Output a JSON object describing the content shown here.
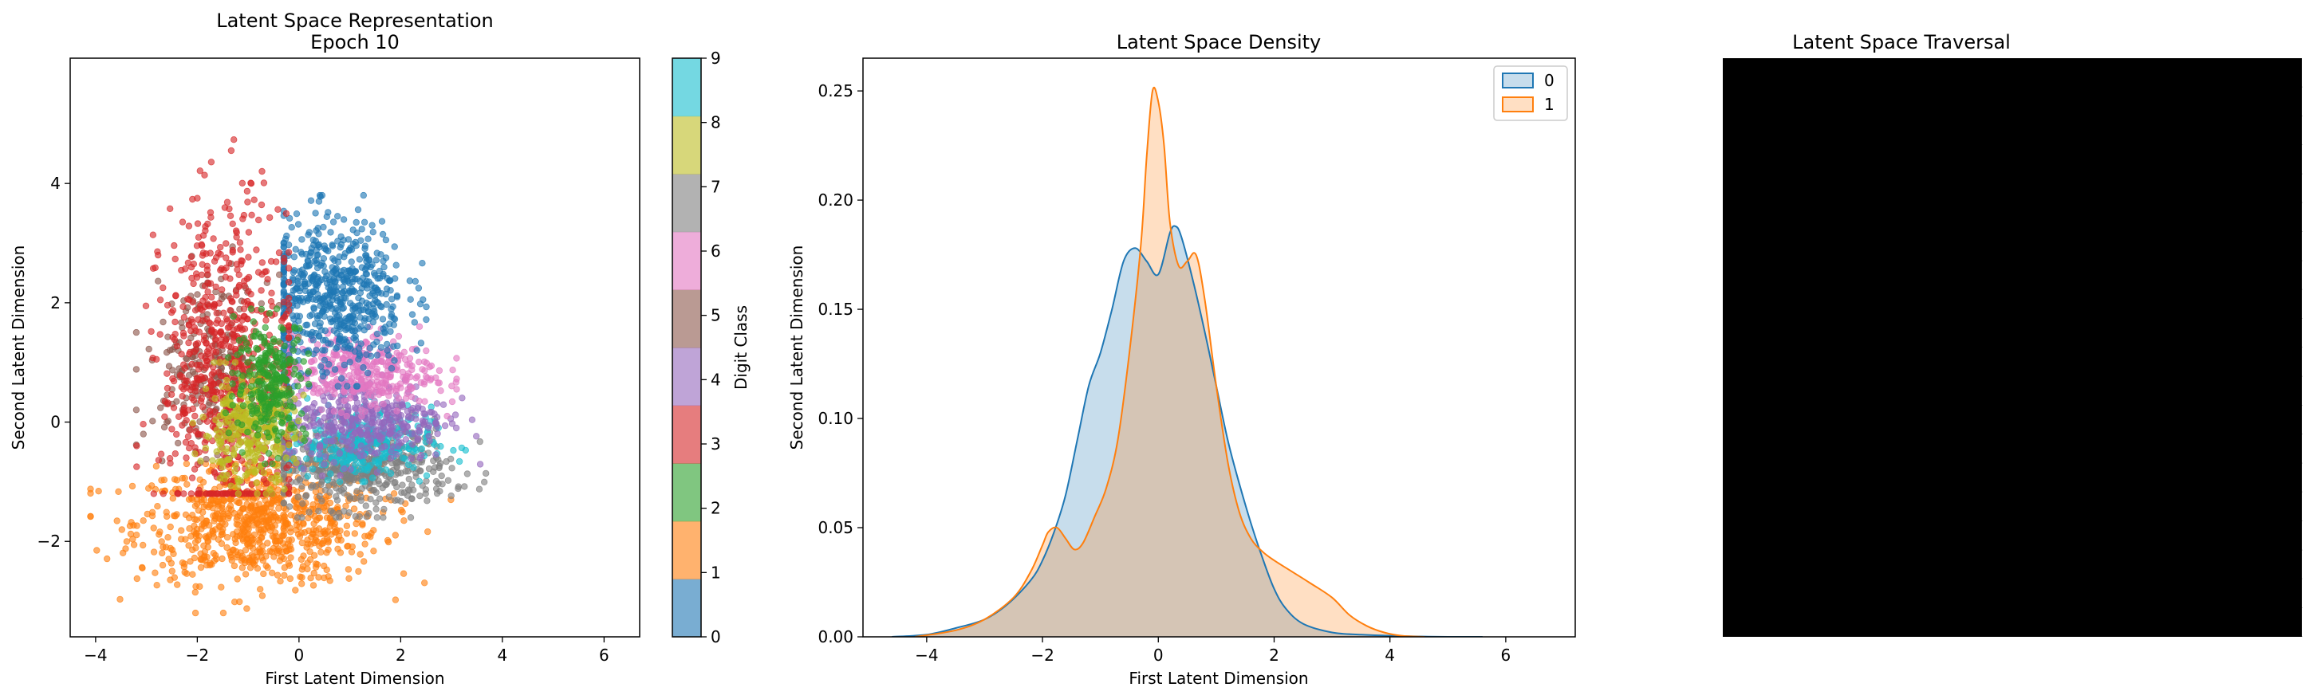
{
  "chart_data": [
    {
      "type": "scatter",
      "title": "Latent Space Representation\nEpoch 10",
      "title_lines": [
        "Latent Space Representation",
        "Epoch 10"
      ],
      "xlabel": "First Latent Dimension",
      "ylabel": "Second Latent Dimension",
      "xlim": [
        -4.5,
        6.7
      ],
      "ylim": [
        -3.6,
        6.1
      ],
      "xticks": [
        -4,
        -2,
        0,
        2,
        4,
        6
      ],
      "xtick_labels": [
        "−4",
        "−2",
        "0",
        "2",
        "4",
        "6"
      ],
      "yticks": [
        -2,
        0,
        2,
        4
      ],
      "ytick_labels": [
        "−2",
        "0",
        "2",
        "4"
      ],
      "grid": false,
      "colorbar": {
        "label": "Digit Class",
        "range": [
          0,
          9
        ],
        "ticks": [
          "0",
          "1",
          "2",
          "3",
          "4",
          "5",
          "6",
          "7",
          "8",
          "9"
        ],
        "colors": [
          "#1f77b4",
          "#ff7f0e",
          "#2ca02c",
          "#d62728",
          "#9467bd",
          "#8c564b",
          "#e377c2",
          "#7f7f7f",
          "#bcbd22",
          "#17becf"
        ]
      },
      "clusters": [
        {
          "class": 0,
          "color": "#1f77b4",
          "center": [
            0.7,
            2.1
          ],
          "spread": [
            0.7,
            0.65
          ],
          "n": 620,
          "range_x": [
            -0.3,
            3.3
          ],
          "range_y": [
            0.6,
            3.8
          ]
        },
        {
          "class": 1,
          "color": "#ff7f0e",
          "center": [
            -0.8,
            -1.7
          ],
          "spread": [
            1.2,
            0.5
          ],
          "n": 800,
          "range_x": [
            -4.1,
            3.3
          ],
          "range_y": [
            -3.2,
            -0.7
          ]
        },
        {
          "class": 2,
          "color": "#2ca02c",
          "center": [
            -0.55,
            0.7
          ],
          "spread": [
            0.35,
            0.5
          ],
          "n": 260,
          "range_x": [
            -1.8,
            0.4
          ],
          "range_y": [
            -0.7,
            1.9
          ]
        },
        {
          "class": 3,
          "color": "#d62728",
          "center": [
            -1.4,
            0.9
          ],
          "spread": [
            0.65,
            1.4
          ],
          "n": 700,
          "range_x": [
            -4.1,
            -0.2
          ],
          "range_y": [
            -1.2,
            5.6
          ]
        },
        {
          "class": 4,
          "color": "#9467bd",
          "center": [
            1.3,
            0.05
          ],
          "spread": [
            0.8,
            0.35
          ],
          "n": 360,
          "range_x": [
            -0.3,
            6.2
          ],
          "range_y": [
            -0.9,
            1.2
          ]
        },
        {
          "class": 5,
          "color": "#8c564b",
          "center": [
            -1.8,
            1.0
          ],
          "spread": [
            0.6,
            0.7
          ],
          "n": 220,
          "range_x": [
            -3.2,
            0.0
          ],
          "range_y": [
            -0.8,
            3.0
          ]
        },
        {
          "class": 6,
          "color": "#e377c2",
          "center": [
            1.1,
            0.85
          ],
          "spread": [
            0.8,
            0.3
          ],
          "n": 380,
          "range_x": [
            -0.2,
            3.1
          ],
          "range_y": [
            0.1,
            1.6
          ]
        },
        {
          "class": 7,
          "color": "#7f7f7f",
          "center": [
            1.2,
            -0.75
          ],
          "spread": [
            0.9,
            0.35
          ],
          "n": 520,
          "range_x": [
            -0.3,
            4.3
          ],
          "range_y": [
            -1.6,
            0.4
          ]
        },
        {
          "class": 8,
          "color": "#bcbd22",
          "center": [
            -1.0,
            -0.15
          ],
          "spread": [
            0.45,
            0.45
          ],
          "n": 320,
          "range_x": [
            -2.2,
            0.3
          ],
          "range_y": [
            -1.2,
            1.0
          ]
        },
        {
          "class": 9,
          "color": "#17becf",
          "center": [
            1.2,
            -0.35
          ],
          "spread": [
            0.7,
            0.3
          ],
          "n": 300,
          "range_x": [
            -0.2,
            4.5
          ],
          "range_y": [
            -1.0,
            0.8
          ]
        }
      ]
    },
    {
      "type": "area",
      "title": "Latent Space Density",
      "xlabel": "First Latent Dimension",
      "ylabel": "Second Latent Dimension",
      "xlim": [
        -5.1,
        7.2
      ],
      "ylim": [
        0,
        0.265
      ],
      "xticks": [
        -4,
        -2,
        0,
        2,
        4,
        6
      ],
      "xtick_labels": [
        "−4",
        "−2",
        "0",
        "2",
        "4",
        "6"
      ],
      "yticks": [
        0.0,
        0.05,
        0.1,
        0.15,
        0.2,
        0.25
      ],
      "ytick_labels": [
        "0.00",
        "0.05",
        "0.10",
        "0.15",
        "0.20",
        "0.25"
      ],
      "legend_placement": "top-right",
      "series": [
        {
          "name": "0",
          "color": "#1f77b4",
          "x": [
            -4.6,
            -4.0,
            -3.5,
            -3.0,
            -2.6,
            -2.2,
            -2.0,
            -1.8,
            -1.6,
            -1.4,
            -1.2,
            -1.0,
            -0.8,
            -0.6,
            -0.4,
            -0.2,
            0.0,
            0.2,
            0.3,
            0.4,
            0.6,
            0.8,
            1.0,
            1.2,
            1.4,
            1.6,
            1.8,
            2.0,
            2.2,
            2.5,
            3.0,
            3.5,
            4.0,
            4.5,
            5.0,
            5.6
          ],
          "y": [
            0.0,
            0.001,
            0.004,
            0.008,
            0.015,
            0.026,
            0.035,
            0.048,
            0.065,
            0.09,
            0.115,
            0.13,
            0.15,
            0.172,
            0.178,
            0.172,
            0.166,
            0.185,
            0.188,
            0.183,
            0.163,
            0.14,
            0.115,
            0.09,
            0.07,
            0.052,
            0.036,
            0.022,
            0.013,
            0.006,
            0.002,
            0.001,
            0.0005,
            0.0002,
            0.0,
            0.0
          ]
        },
        {
          "name": "1",
          "color": "#ff7f0e",
          "x": [
            -4.2,
            -3.5,
            -3.0,
            -2.5,
            -2.2,
            -2.0,
            -1.9,
            -1.75,
            -1.6,
            -1.45,
            -1.3,
            -1.1,
            -0.9,
            -0.7,
            -0.5,
            -0.3,
            -0.2,
            -0.1,
            0.0,
            0.1,
            0.2,
            0.35,
            0.5,
            0.65,
            0.8,
            1.0,
            1.2,
            1.4,
            1.6,
            1.8,
            2.0,
            2.3,
            2.6,
            3.0,
            3.3,
            3.6,
            3.9,
            4.2,
            4.6
          ],
          "y": [
            0.0,
            0.003,
            0.008,
            0.018,
            0.03,
            0.042,
            0.048,
            0.05,
            0.045,
            0.04,
            0.043,
            0.055,
            0.068,
            0.09,
            0.13,
            0.18,
            0.22,
            0.25,
            0.245,
            0.225,
            0.19,
            0.17,
            0.172,
            0.175,
            0.155,
            0.115,
            0.08,
            0.057,
            0.045,
            0.039,
            0.035,
            0.03,
            0.025,
            0.018,
            0.01,
            0.005,
            0.002,
            0.0005,
            0.0
          ]
        }
      ]
    },
    {
      "type": "image",
      "title": "Latent Space Traversal",
      "grid_size": [
        20,
        20
      ],
      "digit_rows": [
        "╲╲╲╲╲╲╲╲╲╲╲╲╲╲╲╲╲╲╲╲",
        "╲╲╲╲╲╲╲╲╲╲╲╲╲╲╲╲╲╲╲╲",
        "╲╲╲╲╲╲╲╲╲╲╲╲╲╲╲╲╲╲╲╲",
        "╲╲╲╲╲╲╲╲╲╲╲╲╲╲╲╲╲╲╲╲",
        "╲╲╲╲╲╲╲╲╲╲╲╲╲╲╲╲╲╲╲╲",
        "╲╲╲╲╲╲╲╲╲╲╲╲╲╲╲╲╲╲╲╲",
        "╲╲╲╲╲╲╲╲╲╲╲╲╲╲╲╲╲╲╲╲",
        "╲╲╲╲╲╲╲╲╲╲╲╲╲╲╲╲╲╲╲╲",
        "╲╲╲╲╲╲╲╲╲╲╲╲╲╲╲╲╲╲╲╲",
        "╲╲╲╲╲╲╲╲╲╲╲╲╲╲╲╲╲╲╲╲",
        "╲╲╲╲╲╲╲╲╲╲╲╲╲╲╲╲╲╲╲╲",
        "╲╲╲╲╲╲╲╲╲╲╲╲╲╲╲╲╲╲╲╲",
        "╲╲╲╲╲╲╲╲╲╲╲╲╲╲╲╲╲╲╲╲",
        "╲╲╲╲╲╲╲╲╲╲╲╲╲╲╲╲╲╲╲╲",
        "╲╲╲╲╲╲╲╲╲╲╲╲╲╲╲╲╲╲╲╲",
        "╲╲╲╲╲╲╲╲╲╲╲╲╲╲╲╲╲╲╲╲",
        "╲╲╲╲╲╲╲╲╲╲╲╲╲╲╲╲╲╲╲╲",
        "╲╲╲╲╲╲╲╲╲╲╲╲╲╲╲╲╲╲╲╲",
        "╲╲╲╲╲╲╲╲╲╲╲╲╲╲╲╲╲╲╲╲",
        "╲╲╲╲╲╲╲╲╲╲╲╲╲╲╲╲╲╲╲╲"
      ]
    }
  ]
}
